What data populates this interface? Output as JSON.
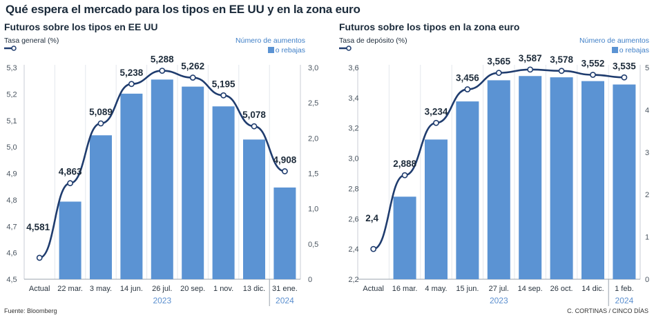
{
  "title": "Qué espera el mercado para los tipos en EE UU y en la zona euro",
  "source": "Fuente: Bloomberg",
  "credit": "C. CORTINAS / CINCO DÍAS",
  "colors": {
    "bar": "#5b93d3",
    "line": "#1f3c6e",
    "marker_fill": "#ffffff",
    "right_axis": "#3f7fc7",
    "year": "#5b8fcf"
  },
  "chart_data": [
    {
      "type": "bar+line",
      "title": "Futuros sobre los tipos en EE UU",
      "ylabel_left": "Tasa general (%)",
      "ylabel_right": [
        "Número de aumentos",
        "o rebajas"
      ],
      "categories": [
        "Actual",
        "22 mar.",
        "3 may.",
        "14 jun.",
        "26 jul.",
        "20 sep.",
        "1 nov.",
        "13 dic.",
        "31 ene."
      ],
      "year_labels": [
        {
          "text": "2023",
          "from": 1,
          "to": 7
        },
        {
          "text": "2024",
          "from": 8,
          "to": 8
        }
      ],
      "series": [
        {
          "name": "Tasa general (%)",
          "type": "line",
          "axis": "left",
          "values": [
            4.581,
            4.863,
            5.089,
            5.238,
            5.288,
            5.262,
            5.195,
            5.078,
            4.908
          ],
          "labels": [
            "4,581",
            "4,863",
            "5,089",
            "5,238",
            "5,288",
            "5,262",
            "5,195",
            "5,078",
            "4,908"
          ]
        },
        {
          "name": "Número de aumentos o rebajas",
          "type": "bar",
          "axis": "right",
          "values": [
            null,
            1.1,
            2.04,
            2.63,
            2.83,
            2.73,
            2.45,
            1.98,
            1.3
          ]
        }
      ],
      "ylim_left": [
        4.5,
        5.3
      ],
      "yticks_left": [
        "4,5",
        "4,6",
        "4,7",
        "4,8",
        "4,9",
        "5,0",
        "5,1",
        "5,2",
        "5,3"
      ],
      "ylim_right": [
        0,
        3.0
      ],
      "yticks_right": [
        "0",
        "0,5",
        "1,0",
        "1,5",
        "2,0",
        "2,5",
        "3,0"
      ],
      "grid": true
    },
    {
      "type": "bar+line",
      "title": "Futuros sobre los tipos en la zona euro",
      "ylabel_left": "Tasa de depósito  (%)",
      "ylabel_right": [
        "Número de aumentos",
        "o rebajas"
      ],
      "categories": [
        "Actual",
        "16 mar.",
        "4 may.",
        "15 jun.",
        "27 jul.",
        "14 sep.",
        "26 oct.",
        "14 dic.",
        "1 feb."
      ],
      "year_labels": [
        {
          "text": "2023",
          "from": 1,
          "to": 7
        },
        {
          "text": "2024",
          "from": 8,
          "to": 8
        }
      ],
      "series": [
        {
          "name": "Tasa de depósito (%)",
          "type": "line",
          "axis": "left",
          "values": [
            2.4,
            2.888,
            3.234,
            3.456,
            3.565,
            3.587,
            3.578,
            3.552,
            3.535
          ],
          "labels": [
            "2,4",
            "2,888",
            "3,234",
            "3,456",
            "3,565",
            "3,587",
            "3,578",
            "3,552",
            "3,535"
          ]
        },
        {
          "name": "Número de aumentos o rebajas",
          "type": "bar",
          "axis": "right",
          "values": [
            null,
            1.95,
            3.3,
            4.2,
            4.7,
            4.8,
            4.77,
            4.68,
            4.6
          ]
        }
      ],
      "ylim_left": [
        2.2,
        3.6
      ],
      "yticks_left": [
        "2,2",
        "2,4",
        "2,6",
        "2,8",
        "3,0",
        "3,2",
        "3,4",
        "3,6"
      ],
      "ylim_right": [
        0,
        5
      ],
      "yticks_right": [
        "0",
        "1",
        "2",
        "3",
        "4",
        "5"
      ],
      "grid": true
    }
  ]
}
